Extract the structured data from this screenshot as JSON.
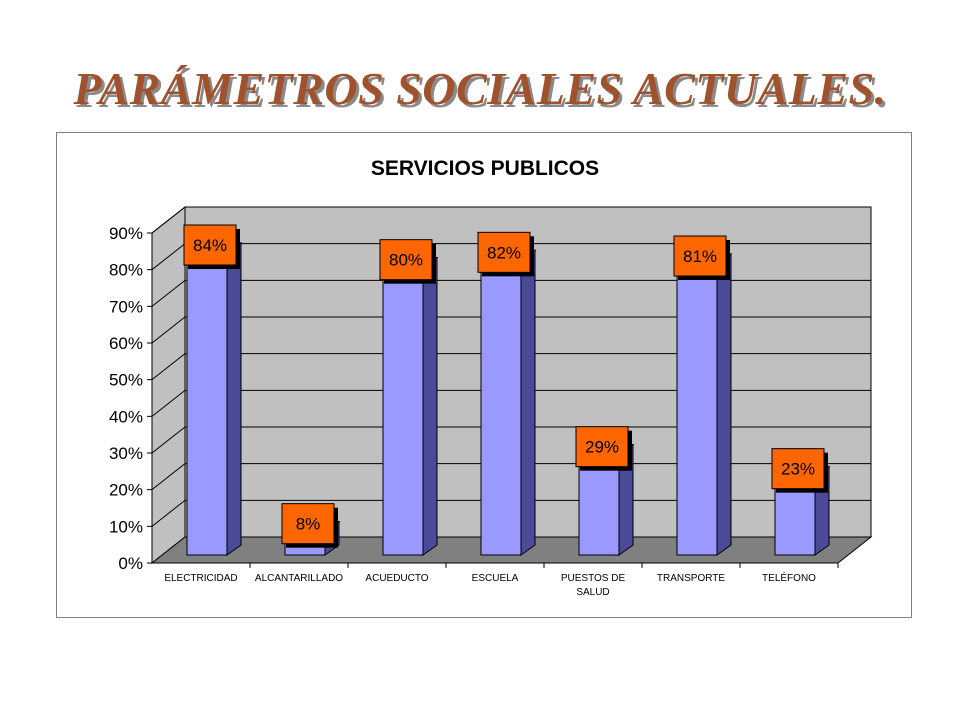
{
  "slide": {
    "title": "PARÁMETROS SOCIALES ACTUALES."
  },
  "colors": {
    "title": "#a0522d",
    "bar_front": "#9999ff",
    "bar_side": "#4a4a99",
    "bar_top": "#6f6fcf",
    "label_box": "#ff6600",
    "wall": "#c0c0c0",
    "floor": "#808080"
  },
  "chart_data": {
    "type": "bar",
    "title": "SERVICIOS PUBLICOS",
    "categories": [
      "ELECTRICIDAD",
      "ALCANTARILLADO",
      "ACUEDUCTO",
      "ESCUELA",
      "PUESTOS DE SALUD",
      "TRANSPORTE",
      "TELÉFONO"
    ],
    "category_lines": [
      [
        "ELECTRICIDAD"
      ],
      [
        "ALCANTARILLADO"
      ],
      [
        "ACUEDUCTO"
      ],
      [
        "ESCUELA"
      ],
      [
        "PUESTOS DE",
        "SALUD"
      ],
      [
        "TRANSPORTE"
      ],
      [
        "TELÉFONO"
      ]
    ],
    "values": [
      0.84,
      0.08,
      0.8,
      0.82,
      0.29,
      0.81,
      0.23
    ],
    "data_labels": [
      "84%",
      "8%",
      "80%",
      "82%",
      "29%",
      "81%",
      "23%"
    ],
    "yticks": [
      "0%",
      "10%",
      "20%",
      "30%",
      "40%",
      "50%",
      "60%",
      "70%",
      "80%",
      "90%"
    ],
    "ylim": [
      0,
      0.9
    ],
    "xlabel": "",
    "ylabel": "",
    "grid": true,
    "style": "3d-column"
  }
}
